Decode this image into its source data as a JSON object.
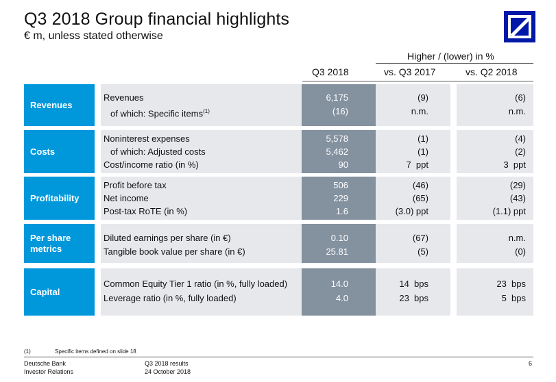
{
  "title": "Q3 2018 Group financial highlights",
  "subtitle": "€ m, unless stated otherwise",
  "header": {
    "group_label": "Higher / (lower) in %",
    "col_value": "Q3 2018",
    "col_vs_prior_year": "vs. Q3 2017",
    "col_vs_prior_quarter": "vs. Q2 2018"
  },
  "sections": {
    "revenues": {
      "label": "Revenues",
      "rows": [
        {
          "label": "Revenues",
          "value": "6,175",
          "vs_q3_2017": "(9)",
          "vs_q2_2018": "(6)"
        },
        {
          "label": "of which: Specific items",
          "footnote_ref": "(1)",
          "value": "(16)",
          "vs_q3_2017": "n.m.",
          "vs_q2_2018": "n.m."
        }
      ]
    },
    "costs": {
      "label": "Costs",
      "rows": [
        {
          "label": "Noninterest expenses",
          "value": "5,578",
          "vs_q3_2017": "(1)",
          "vs_q2_2018": "(4)"
        },
        {
          "label": "of which: Adjusted costs",
          "value": "5,462",
          "vs_q3_2017": "(1)",
          "vs_q2_2018": "(2)"
        },
        {
          "label": "Cost/income ratio (in %)",
          "value": "90",
          "vs_q3_2017": "7  ppt",
          "vs_q2_2018": "3  ppt"
        }
      ]
    },
    "profitability": {
      "label": "Profitability",
      "rows": [
        {
          "label": "Profit before tax",
          "value": "506",
          "vs_q3_2017": "(46)",
          "vs_q2_2018": "(29)"
        },
        {
          "label": "Net income",
          "value": "229",
          "vs_q3_2017": "(65)",
          "vs_q2_2018": "(43)"
        },
        {
          "label": "Post-tax RoTE (in %)",
          "value": "1.6",
          "vs_q3_2017": "(3.0) ppt",
          "vs_q2_2018": "(1.1) ppt"
        }
      ]
    },
    "per_share": {
      "label_line1": "Per share",
      "label_line2": "metrics",
      "rows": [
        {
          "label": "Diluted earnings per share (in €)",
          "value": "0.10",
          "vs_q3_2017": "(67)",
          "vs_q2_2018": "n.m."
        },
        {
          "label": "Tangible book value per share (in €)",
          "value": "25.81",
          "vs_q3_2017": "(5)",
          "vs_q2_2018": "(0)"
        }
      ]
    },
    "capital": {
      "label": "Capital",
      "rows": [
        {
          "label": "Common Equity Tier 1 ratio (in %, fully loaded)",
          "value": "14.0",
          "vs_q3_2017": "14  bps",
          "vs_q2_2018": "23  bps"
        },
        {
          "label": "Leverage ratio (in %, fully loaded)",
          "value": "4.0",
          "vs_q3_2017": "23  bps",
          "vs_q2_2018": "5  bps"
        }
      ]
    }
  },
  "footnote": {
    "marker": "(1)",
    "text": "Specific items defined on slide 18"
  },
  "footer": {
    "company_line1": "Deutsche Bank",
    "company_line2": "Investor Relations",
    "doc_line1": "Q3 2018 results",
    "doc_line2": "24 October 2018",
    "page_number": "6"
  },
  "colors": {
    "category_blue": "#0098db",
    "value_column": "#84919f",
    "light_cells": "#e6e8ec",
    "logo_blue": "#0018A8"
  },
  "icons": {
    "logo": "deutsche-bank-logo"
  }
}
